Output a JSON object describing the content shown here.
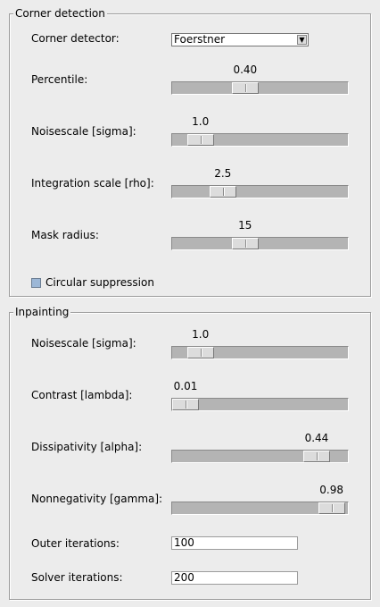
{
  "corner_detection": {
    "title": "Corner detection",
    "detector": {
      "label": "Corner detector:",
      "value": "Foerstner"
    },
    "percentile": {
      "label": "Percentile:",
      "value_text": "0.40",
      "fraction": 0.4
    },
    "noisescale": {
      "label": "Noisescale [sigma]:",
      "value_text": "1.0",
      "fraction": 0.1
    },
    "integration": {
      "label": "Integration scale [rho]:",
      "value_text": "2.5",
      "fraction": 0.25
    },
    "mask_radius": {
      "label": "Mask radius:",
      "value_text": "15",
      "fraction": 0.4
    },
    "circular": {
      "label": "Circular suppression",
      "checked": false
    }
  },
  "inpainting": {
    "title": "Inpainting",
    "noisescale": {
      "label": "Noisescale [sigma]:",
      "value_text": "1.0",
      "fraction": 0.1
    },
    "contrast": {
      "label": "Contrast [lambda]:",
      "value_text": "0.01",
      "fraction": 0.0
    },
    "dissipativity": {
      "label": "Dissipativity [alpha]:",
      "value_text": "0.44",
      "fraction": 0.88
    },
    "nonnegativity": {
      "label": "Nonnegativity [gamma]:",
      "value_text": "0.98",
      "fraction": 0.98
    },
    "outer_iterations": {
      "label": "Outer iterations:",
      "value": "100"
    },
    "solver_iterations": {
      "label": "Solver iterations:",
      "value": "200"
    }
  }
}
